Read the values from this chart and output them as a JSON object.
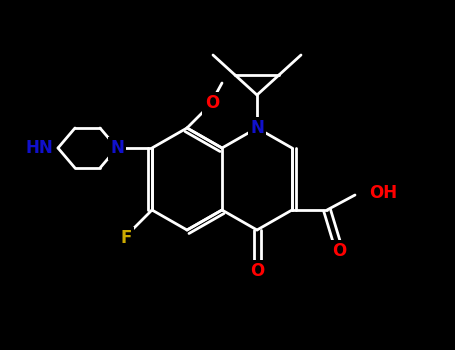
{
  "background_color": "#000000",
  "bond_color": "#ffffff",
  "atom_colors": {
    "N": "#1010cc",
    "O": "#ff0000",
    "F": "#ccaa00",
    "C": "#ffffff",
    "H": "#ffffff"
  },
  "fig_width": 4.55,
  "fig_height": 3.5,
  "dpi": 100
}
